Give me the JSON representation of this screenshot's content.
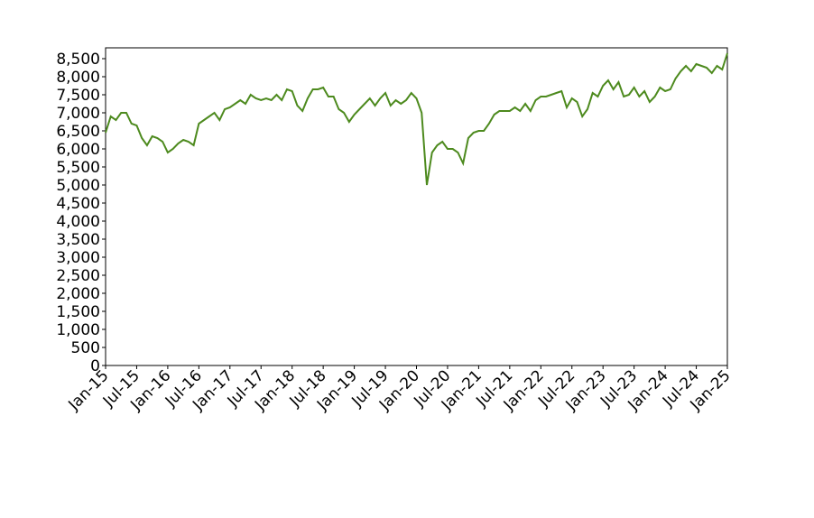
{
  "chart_data": {
    "type": "line",
    "x": [
      "2015-01",
      "2015-02",
      "2015-03",
      "2015-04",
      "2015-05",
      "2015-06",
      "2015-07",
      "2015-08",
      "2015-09",
      "2015-10",
      "2015-11",
      "2015-12",
      "2016-01",
      "2016-02",
      "2016-03",
      "2016-04",
      "2016-05",
      "2016-06",
      "2016-07",
      "2016-08",
      "2016-09",
      "2016-10",
      "2016-11",
      "2016-12",
      "2017-01",
      "2017-02",
      "2017-03",
      "2017-04",
      "2017-05",
      "2017-06",
      "2017-07",
      "2017-08",
      "2017-09",
      "2017-10",
      "2017-11",
      "2017-12",
      "2018-01",
      "2018-02",
      "2018-03",
      "2018-04",
      "2018-05",
      "2018-06",
      "2018-07",
      "2018-08",
      "2018-09",
      "2018-10",
      "2018-11",
      "2018-12",
      "2019-01",
      "2019-02",
      "2019-03",
      "2019-04",
      "2019-05",
      "2019-06",
      "2019-07",
      "2019-08",
      "2019-09",
      "2019-10",
      "2019-11",
      "2019-12",
      "2020-01",
      "2020-02",
      "2020-03",
      "2020-04",
      "2020-05",
      "2020-06",
      "2020-07",
      "2020-08",
      "2020-09",
      "2020-10",
      "2020-11",
      "2020-12",
      "2021-01",
      "2021-02",
      "2021-03",
      "2021-04",
      "2021-05",
      "2021-06",
      "2021-07",
      "2021-08",
      "2021-09",
      "2021-10",
      "2021-11",
      "2021-12",
      "2022-01",
      "2022-02",
      "2022-03",
      "2022-04",
      "2022-05",
      "2022-06",
      "2022-07",
      "2022-08",
      "2022-09",
      "2022-10",
      "2022-11",
      "2022-12",
      "2023-01",
      "2023-02",
      "2023-03",
      "2023-04",
      "2023-05",
      "2023-06",
      "2023-07",
      "2023-08",
      "2023-09",
      "2023-10",
      "2023-11",
      "2023-12",
      "2024-01",
      "2024-02",
      "2024-03",
      "2024-04",
      "2024-05",
      "2024-06",
      "2024-07",
      "2024-08",
      "2024-09",
      "2024-10",
      "2024-11",
      "2024-12",
      "2025-01"
    ],
    "series": [
      {
        "color": "#4d8a1e",
        "values": [
          6450,
          6900,
          6800,
          7000,
          7000,
          6700,
          6650,
          6300,
          6100,
          6350,
          6300,
          6200,
          5900,
          6000,
          6150,
          6250,
          6200,
          6100,
          6700,
          6800,
          6900,
          7000,
          6800,
          7100,
          7150,
          7250,
          7350,
          7250,
          7500,
          7400,
          7350,
          7400,
          7350,
          7500,
          7350,
          7650,
          7600,
          7200,
          7050,
          7400,
          7650,
          7650,
          7700,
          7450,
          7450,
          7100,
          7000,
          6750,
          6950,
          7100,
          7250,
          7400,
          7200,
          7400,
          7550,
          7200,
          7350,
          7250,
          7350,
          7550,
          7400,
          7000,
          5000,
          5900,
          6100,
          6200,
          6000,
          6000,
          5900,
          5600,
          6300,
          6450,
          6500,
          6500,
          6700,
          6950,
          7050,
          7050,
          7050,
          7150,
          7050,
          7250,
          7050,
          7350,
          7450,
          7450,
          7500,
          7550,
          7600,
          7150,
          7400,
          7300,
          6900,
          7100,
          7550,
          7450,
          7750,
          7900,
          7650,
          7850,
          7450,
          7500,
          7700,
          7450,
          7600,
          7300,
          7450,
          7700,
          7600,
          7650,
          7950,
          8150,
          8300,
          8150,
          8350,
          8300,
          8250,
          8100,
          8300,
          8200,
          8650
        ]
      }
    ],
    "xlim": [
      "2015-01",
      "2025-01"
    ],
    "xticks": [
      {
        "value": "2015-01",
        "label": "Jan-15"
      },
      {
        "value": "2015-07",
        "label": "Jul-15"
      },
      {
        "value": "2016-01",
        "label": "Jan-16"
      },
      {
        "value": "2016-07",
        "label": "Jul-16"
      },
      {
        "value": "2017-01",
        "label": "Jan-17"
      },
      {
        "value": "2017-07",
        "label": "Jul-17"
      },
      {
        "value": "2018-01",
        "label": "Jan-18"
      },
      {
        "value": "2018-07",
        "label": "Jul-18"
      },
      {
        "value": "2019-01",
        "label": "Jan-19"
      },
      {
        "value": "2019-07",
        "label": "Jul-19"
      },
      {
        "value": "2020-01",
        "label": "Jan-20"
      },
      {
        "value": "2020-07",
        "label": "Jul-20"
      },
      {
        "value": "2021-01",
        "label": "Jan-21"
      },
      {
        "value": "2021-07",
        "label": "Jul-21"
      },
      {
        "value": "2022-01",
        "label": "Jan-22"
      },
      {
        "value": "2022-07",
        "label": "Jul-22"
      },
      {
        "value": "2023-01",
        "label": "Jan-23"
      },
      {
        "value": "2023-07",
        "label": "Jul-23"
      },
      {
        "value": "2024-01",
        "label": "Jan-24"
      },
      {
        "value": "2024-07",
        "label": "Jul-24"
      },
      {
        "value": "2025-01",
        "label": "Jan-25"
      }
    ],
    "ylim": [
      0,
      8800
    ],
    "yticks": [
      0,
      500,
      {
        "value": 1000,
        "label": "1,000"
      },
      {
        "value": 1500,
        "label": "1,500"
      },
      {
        "value": 2000,
        "label": "2,000"
      },
      {
        "value": 2500,
        "label": "2,500"
      },
      {
        "value": 3000,
        "label": "3,000"
      },
      {
        "value": 3500,
        "label": "3,500"
      },
      {
        "value": 4000,
        "label": "4,000"
      },
      {
        "value": 4500,
        "label": "4,500"
      },
      {
        "value": 5000,
        "label": "5,000"
      },
      {
        "value": 5500,
        "label": "5,500"
      },
      {
        "value": 6000,
        "label": "6,000"
      },
      {
        "value": 6500,
        "label": "6,500"
      },
      {
        "value": 7000,
        "label": "7,000"
      },
      {
        "value": 7500,
        "label": "7,500"
      },
      {
        "value": 8000,
        "label": "8,000"
      },
      {
        "value": 8500,
        "label": "8,500"
      }
    ],
    "grid": false
  }
}
